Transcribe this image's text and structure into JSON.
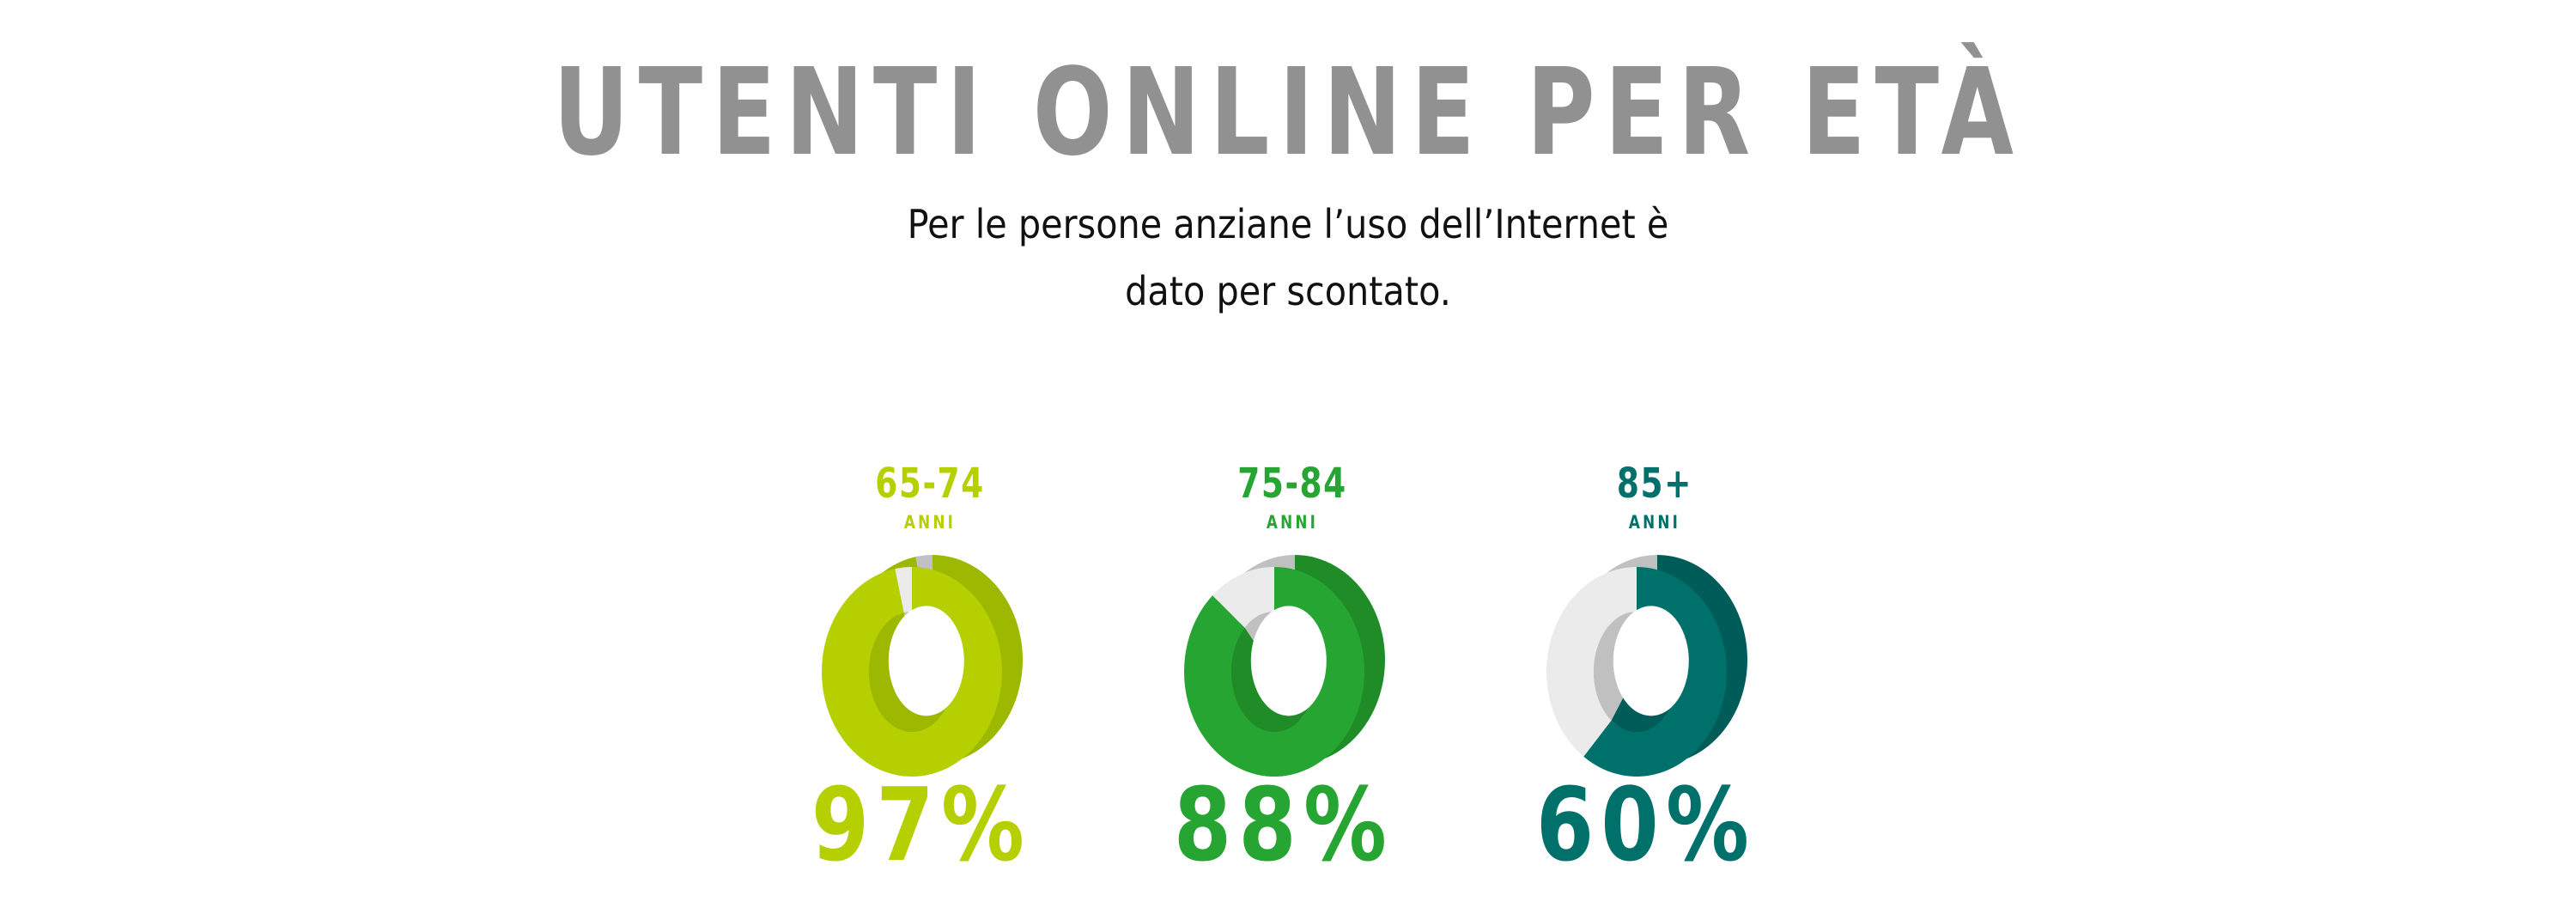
{
  "header": {
    "title": "UTENTI ONLINE PER ETÀ",
    "subtitle_line1": "Per le persone anziane l’uso dell’Internet è",
    "subtitle_line2": "dato per scontato."
  },
  "chart_data": {
    "type": "pie",
    "style": "3d-donut",
    "unit_label": "ANNI",
    "categories": [
      "65-74",
      "75-84",
      "85+"
    ],
    "values": [
      97,
      88,
      60
    ],
    "value_labels": [
      "97%",
      "88%",
      "60%"
    ],
    "max": 100,
    "colors": [
      "#b5cf00",
      "#27a532",
      "#00706a"
    ],
    "side_colors": [
      "#9db800",
      "#1f8c28",
      "#005c58"
    ],
    "remainder_color": "#ebebeb",
    "remainder_side_color": "#c0c0c0",
    "title_color": "#919191"
  }
}
